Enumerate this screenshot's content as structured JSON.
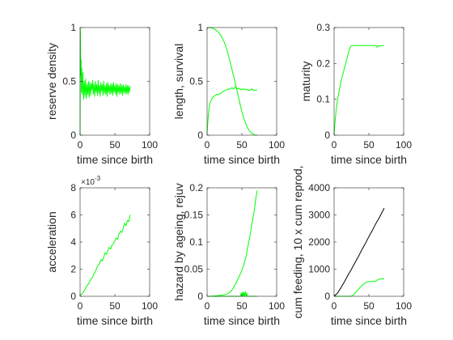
{
  "window": {
    "background": "#ffffff",
    "axis_color": "#262626",
    "line_color": "#00ff00",
    "line_color_dark": "#000000"
  },
  "chart_data": [
    {
      "type": "line",
      "xlabel": "time since birth",
      "ylabel": "reserve density",
      "xlim": [
        0,
        100
      ],
      "ylim": [
        0,
        1
      ],
      "xticks": [
        0,
        50,
        100
      ],
      "yticks": [
        0,
        0.5,
        1
      ],
      "xticklabels": [
        "0",
        "50",
        "100"
      ],
      "yticklabels": [
        "0",
        "0.5",
        "1"
      ],
      "exponent": "",
      "series": [
        {
          "color": "#00ff00",
          "x": [
            0,
            0.2,
            0.5,
            1,
            1.5,
            2,
            2.5,
            3,
            4,
            5,
            6,
            7,
            8,
            9,
            10,
            11,
            12,
            13,
            14,
            15,
            16,
            17,
            18,
            19,
            20,
            21,
            22,
            23,
            24,
            25,
            26,
            27,
            28,
            29,
            30,
            31,
            32,
            33,
            34,
            35,
            36,
            37,
            38,
            39,
            40,
            41,
            42,
            43,
            44,
            45,
            46,
            47,
            48,
            49,
            50,
            51,
            52,
            53,
            54,
            55,
            56,
            57,
            58,
            59,
            60,
            61,
            62,
            63,
            64,
            65,
            66,
            67,
            68,
            69,
            70,
            71,
            72
          ],
          "y": [
            0,
            0.75,
            0.98,
            0.55,
            0.7,
            0.4,
            0.62,
            0.38,
            0.58,
            0.33,
            0.5,
            0.36,
            0.52,
            0.34,
            0.47,
            0.38,
            0.5,
            0.35,
            0.49,
            0.37,
            0.48,
            0.42,
            0.51,
            0.38,
            0.47,
            0.36,
            0.5,
            0.4,
            0.47,
            0.37,
            0.51,
            0.39,
            0.46,
            0.36,
            0.49,
            0.41,
            0.47,
            0.37,
            0.5,
            0.39,
            0.46,
            0.38,
            0.48,
            0.36,
            0.49,
            0.4,
            0.46,
            0.38,
            0.48,
            0.39,
            0.47,
            0.37,
            0.49,
            0.4,
            0.46,
            0.38,
            0.48,
            0.36,
            0.47,
            0.4,
            0.46,
            0.38,
            0.48,
            0.39,
            0.46,
            0.37,
            0.47,
            0.4,
            0.45,
            0.38,
            0.47,
            0.39,
            0.46,
            0.38,
            0.46,
            0.4,
            0.45
          ]
        }
      ]
    },
    {
      "type": "line",
      "xlabel": "time since birth",
      "ylabel": "length, survival",
      "xlim": [
        0,
        100
      ],
      "ylim": [
        0,
        1
      ],
      "xticks": [
        0,
        50,
        100
      ],
      "yticks": [
        0,
        0.5,
        1
      ],
      "xticklabels": [
        "0",
        "50",
        "100"
      ],
      "yticklabels": [
        "0",
        "0.5",
        "1"
      ],
      "exponent": "",
      "series": [
        {
          "color": "#00ff00",
          "x": [
            0,
            1,
            2,
            4,
            6,
            8,
            10,
            12,
            15,
            18,
            20,
            22,
            25,
            28,
            30,
            32,
            35,
            38,
            40,
            42,
            45,
            48,
            50,
            52,
            55,
            58,
            60,
            62,
            65,
            68,
            70,
            72
          ],
          "y": [
            1,
            1,
            1,
            0.998,
            0.996,
            0.993,
            0.988,
            0.98,
            0.965,
            0.945,
            0.925,
            0.9,
            0.86,
            0.8,
            0.76,
            0.71,
            0.63,
            0.55,
            0.5,
            0.44,
            0.36,
            0.27,
            0.22,
            0.17,
            0.12,
            0.07,
            0.05,
            0.03,
            0.015,
            0.005,
            0.002,
            0
          ]
        },
        {
          "color": "#00ff00",
          "x": [
            0,
            1,
            2,
            3,
            4,
            5,
            6,
            8,
            10,
            12,
            14,
            16,
            18,
            20,
            22,
            24,
            26,
            28,
            30,
            32,
            34,
            36,
            38,
            40,
            42,
            44,
            46,
            48,
            50,
            52,
            54,
            56,
            58,
            60,
            62,
            64,
            66,
            68,
            70,
            72
          ],
          "y": [
            0.02,
            0.12,
            0.2,
            0.25,
            0.29,
            0.31,
            0.33,
            0.35,
            0.36,
            0.37,
            0.38,
            0.375,
            0.385,
            0.39,
            0.4,
            0.41,
            0.415,
            0.42,
            0.43,
            0.425,
            0.435,
            0.44,
            0.43,
            0.445,
            0.44,
            0.43,
            0.435,
            0.42,
            0.43,
            0.425,
            0.43,
            0.42,
            0.425,
            0.415,
            0.42,
            0.43,
            0.42,
            0.415,
            0.42,
            0.42
          ]
        }
      ]
    },
    {
      "type": "line",
      "xlabel": "time since birth",
      "ylabel": "maturity",
      "xlim": [
        0,
        100
      ],
      "ylim": [
        0,
        0.3
      ],
      "xticks": [
        0,
        50,
        100
      ],
      "yticks": [
        0,
        0.1,
        0.2,
        0.3
      ],
      "xticklabels": [
        "0",
        "50",
        "100"
      ],
      "yticklabels": [
        "0",
        "0.1",
        "0.2",
        "0.3"
      ],
      "exponent": "",
      "series": [
        {
          "color": "#00ff00",
          "x": [
            0,
            1,
            2,
            3,
            4,
            5,
            6,
            8,
            10,
            12,
            14,
            16,
            18,
            20,
            22,
            24,
            26,
            28,
            30,
            35,
            40,
            45,
            50,
            55,
            60,
            62,
            64,
            66,
            68,
            70,
            72
          ],
          "y": [
            0,
            0.03,
            0.05,
            0.07,
            0.085,
            0.1,
            0.11,
            0.13,
            0.15,
            0.165,
            0.18,
            0.195,
            0.21,
            0.225,
            0.238,
            0.248,
            0.25,
            0.25,
            0.25,
            0.25,
            0.25,
            0.25,
            0.25,
            0.25,
            0.25,
            0.245,
            0.25,
            0.248,
            0.25,
            0.25,
            0.25
          ]
        }
      ]
    },
    {
      "type": "line",
      "xlabel": "time since birth",
      "ylabel": "acceleration",
      "xlim": [
        0,
        100
      ],
      "ylim": [
        0,
        0.008
      ],
      "xticks": [
        0,
        50,
        100
      ],
      "yticks": [
        0,
        0.002,
        0.004,
        0.006,
        0.008
      ],
      "xticklabels": [
        "0",
        "50",
        "100"
      ],
      "yticklabels": [
        "0",
        "2",
        "4",
        "6",
        "8"
      ],
      "exponent": "×10",
      "exponent_power": "-3",
      "series": [
        {
          "color": "#00ff00",
          "x": [
            0,
            2,
            4,
            6,
            8,
            10,
            12,
            14,
            16,
            18,
            20,
            22,
            24,
            26,
            28,
            30,
            32,
            34,
            36,
            38,
            40,
            42,
            44,
            46,
            48,
            50,
            52,
            54,
            56,
            58,
            60,
            62,
            64,
            66,
            68,
            70,
            72
          ],
          "y": [
            0.0001,
            0.00015,
            0.00025,
            0.0004,
            0.0006,
            0.0008,
            0.0009,
            0.0011,
            0.0013,
            0.0014,
            0.0017,
            0.0018,
            0.0021,
            0.0023,
            0.0024,
            0.0027,
            0.0026,
            0.0029,
            0.0032,
            0.0031,
            0.0034,
            0.0036,
            0.0035,
            0.0038,
            0.0039,
            0.0041,
            0.0043,
            0.0042,
            0.0046,
            0.0048,
            0.0047,
            0.005,
            0.0054,
            0.0052,
            0.0056,
            0.0055,
            0.006
          ]
        }
      ]
    },
    {
      "type": "line",
      "xlabel": "time since birth",
      "ylabel": "hazard by ageing, rejuv",
      "xlim": [
        0,
        100
      ],
      "ylim": [
        0,
        0.2
      ],
      "xticks": [
        0,
        50,
        100
      ],
      "yticks": [
        0,
        0.05,
        0.1,
        0.15,
        0.2
      ],
      "xticklabels": [
        "0",
        "50",
        "100"
      ],
      "yticklabels": [
        "0",
        "0.05",
        "0.1",
        "0.15",
        "0.2"
      ],
      "exponent": "",
      "series": [
        {
          "color": "#00ff00",
          "x": [
            0,
            5,
            10,
            15,
            20,
            25,
            28,
            30,
            32,
            34,
            36,
            38,
            40,
            42,
            44,
            46,
            48,
            50,
            52,
            54,
            56,
            58,
            60,
            62,
            64,
            66,
            68,
            70,
            72
          ],
          "y": [
            0,
            0.0002,
            0.0006,
            0.0012,
            0.002,
            0.003,
            0.004,
            0.005,
            0.007,
            0.009,
            0.012,
            0.016,
            0.021,
            0.025,
            0.031,
            0.036,
            0.042,
            0.048,
            0.055,
            0.064,
            0.073,
            0.088,
            0.1,
            0.114,
            0.13,
            0.145,
            0.16,
            0.18,
            0.195
          ]
        },
        {
          "color": "#00ff00",
          "x": [
            0,
            10,
            20,
            30,
            40,
            45,
            48,
            49,
            50,
            51,
            52,
            53,
            54,
            55,
            56,
            57,
            58,
            60,
            65,
            70,
            72
          ],
          "y": [
            0,
            0,
            0,
            0,
            0,
            0,
            0,
            0.006,
            0,
            0.008,
            0,
            0.007,
            0,
            0.009,
            0,
            0.006,
            0,
            0,
            0,
            0,
            0
          ]
        }
      ]
    },
    {
      "type": "line",
      "xlabel": "time since birth",
      "ylabel": "cum feeding, 10 x cum reprod,",
      "xlim": [
        0,
        100
      ],
      "ylim": [
        0,
        4000
      ],
      "xticks": [
        0,
        50,
        100
      ],
      "yticks": [
        0,
        1000,
        2000,
        3000,
        4000
      ],
      "xticklabels": [
        "0",
        "50",
        "100"
      ],
      "yticklabels": [
        "0",
        "1000",
        "2000",
        "3000",
        "4000"
      ],
      "exponent": "",
      "series": [
        {
          "color": "#000000",
          "x": [
            0,
            5,
            10,
            15,
            20,
            25,
            30,
            35,
            40,
            45,
            50,
            55,
            60,
            65,
            70,
            72
          ],
          "y": [
            0,
            120,
            320,
            540,
            780,
            1000,
            1240,
            1470,
            1720,
            1950,
            2200,
            2430,
            2680,
            2900,
            3150,
            3250
          ]
        },
        {
          "color": "#00ff00",
          "x": [
            0,
            10,
            20,
            24,
            26,
            28,
            30,
            32,
            34,
            36,
            38,
            40,
            42,
            44,
            46,
            48,
            50,
            55,
            60,
            62,
            64,
            66,
            68,
            70,
            72
          ],
          "y": [
            0,
            0,
            0,
            0,
            20,
            60,
            120,
            170,
            230,
            290,
            350,
            400,
            440,
            480,
            510,
            530,
            540,
            550,
            560,
            600,
            620,
            640,
            650,
            640,
            660
          ]
        }
      ]
    }
  ]
}
